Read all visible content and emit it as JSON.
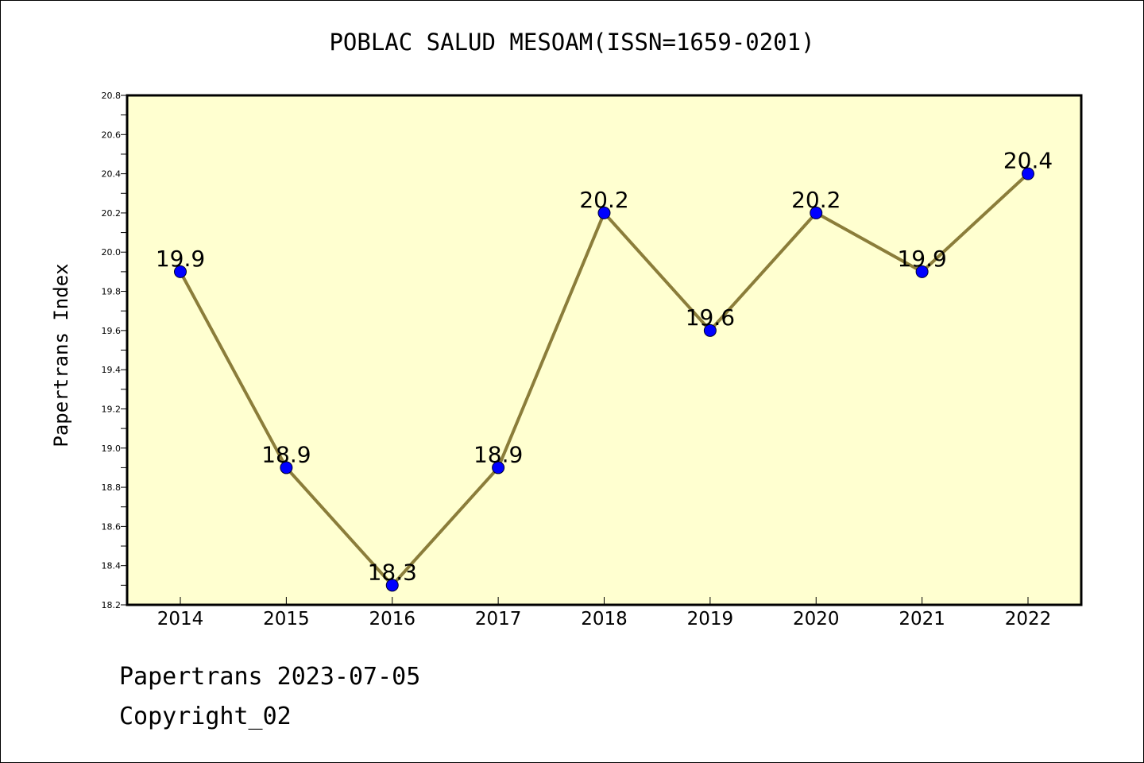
{
  "page": {
    "footer_date": "Papertrans 2023-07-05",
    "footer_copyright": "Copyright_02"
  },
  "chart_data": {
    "type": "line",
    "title": "POBLAC SALUD MESOAM(ISSN=1659-0201)",
    "xlabel": "",
    "ylabel": "Papertrans Index",
    "categories": [
      "2014",
      "2015",
      "2016",
      "2017",
      "2018",
      "2019",
      "2020",
      "2021",
      "2022"
    ],
    "series": [
      {
        "values": [
          19.9,
          18.9,
          18.3,
          18.9,
          20.2,
          19.6,
          20.2,
          19.9,
          20.4
        ],
        "data_labels": [
          "19.9",
          "18.9",
          "18.3",
          "18.9",
          "20.2",
          "19.6",
          "20.2",
          "19.9",
          "20.4"
        ]
      }
    ],
    "ylim": [
      18.2,
      20.8
    ],
    "yticks": [
      18.2,
      18.4,
      18.6,
      18.8,
      19.0,
      19.2,
      19.4,
      19.6,
      19.8,
      20.0,
      20.2,
      20.4,
      20.6,
      20.8
    ],
    "ytick_labels": [
      "18.2",
      "18.4",
      "18.6",
      "18.8",
      "19.0",
      "19.2",
      "19.4",
      "19.6",
      "19.8",
      "20.0",
      "20.2",
      "20.4",
      "20.6",
      "20.8"
    ],
    "grid": false,
    "legend": "none",
    "colors": {
      "plot_background": "#ffffd0",
      "line": "#8b7d3a",
      "marker": "#0000ff",
      "axis": "#000000"
    }
  }
}
